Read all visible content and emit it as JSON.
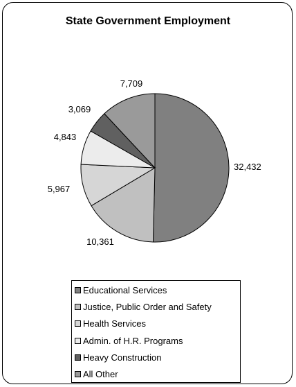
{
  "chart_data": {
    "type": "pie",
    "title": "State Government Employment",
    "categories": [
      "Educational Services",
      "Justice, Public Order and Safety",
      "Health Services",
      "Admin. of H.R. Programs",
      "Heavy Construction",
      "All Other"
    ],
    "values": [
      32432,
      10361,
      5967,
      4843,
      3069,
      7709
    ],
    "value_labels": [
      "32,432",
      "10,361",
      "5,967",
      "4,843",
      "3,069",
      "7,709"
    ],
    "colors": [
      "#808080",
      "#c0c0c0",
      "#d6d6d6",
      "#ececec",
      "#606060",
      "#9a9a9a"
    ],
    "legend_placement": "bottom",
    "start_angle": "12 o'clock",
    "direction": "clockwise"
  }
}
